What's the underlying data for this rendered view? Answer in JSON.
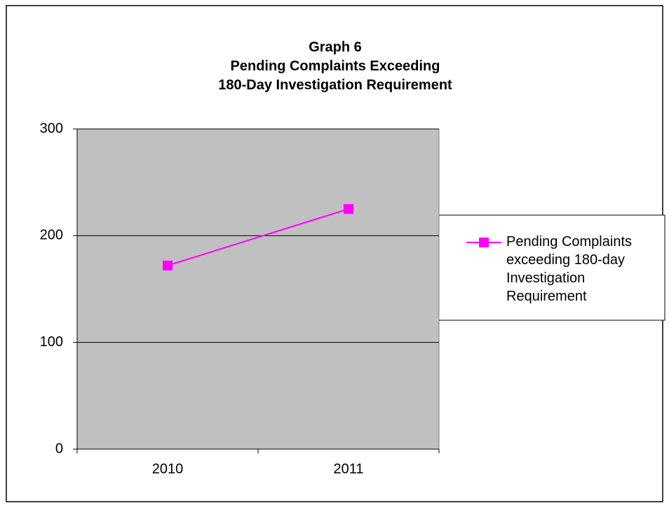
{
  "chart_data": {
    "type": "line",
    "title": [
      "Graph 6",
      "Pending Complaints Exceeding",
      "180-Day Investigation Requirement"
    ],
    "categories": [
      "2010",
      "2011"
    ],
    "series": [
      {
        "name": "Pending Complaints exceeding 180-day Investigation Requirement",
        "color": "#ff00ff",
        "values": [
          172,
          225
        ]
      }
    ],
    "ylim": [
      0,
      300
    ],
    "yticks": [
      0,
      100,
      200,
      300
    ],
    "grid": true,
    "legend": "right"
  }
}
